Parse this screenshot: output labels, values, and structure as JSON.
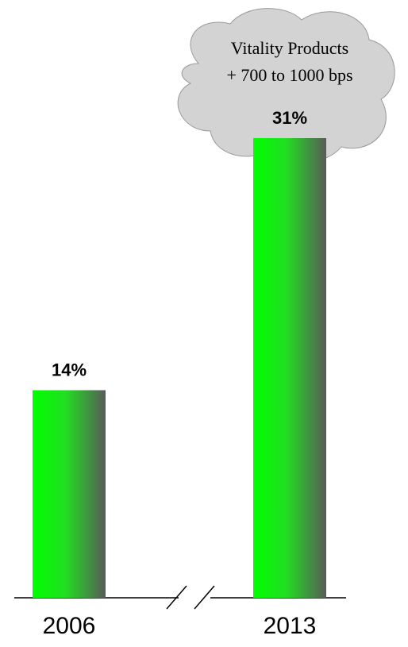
{
  "chart_data": {
    "type": "bar",
    "categories": [
      "2006",
      "2013"
    ],
    "values": [
      14,
      31
    ],
    "value_labels": [
      "14%",
      "31%"
    ],
    "annotation": [
      "Vitality Products",
      "+ 700 to 1000 bps"
    ]
  }
}
